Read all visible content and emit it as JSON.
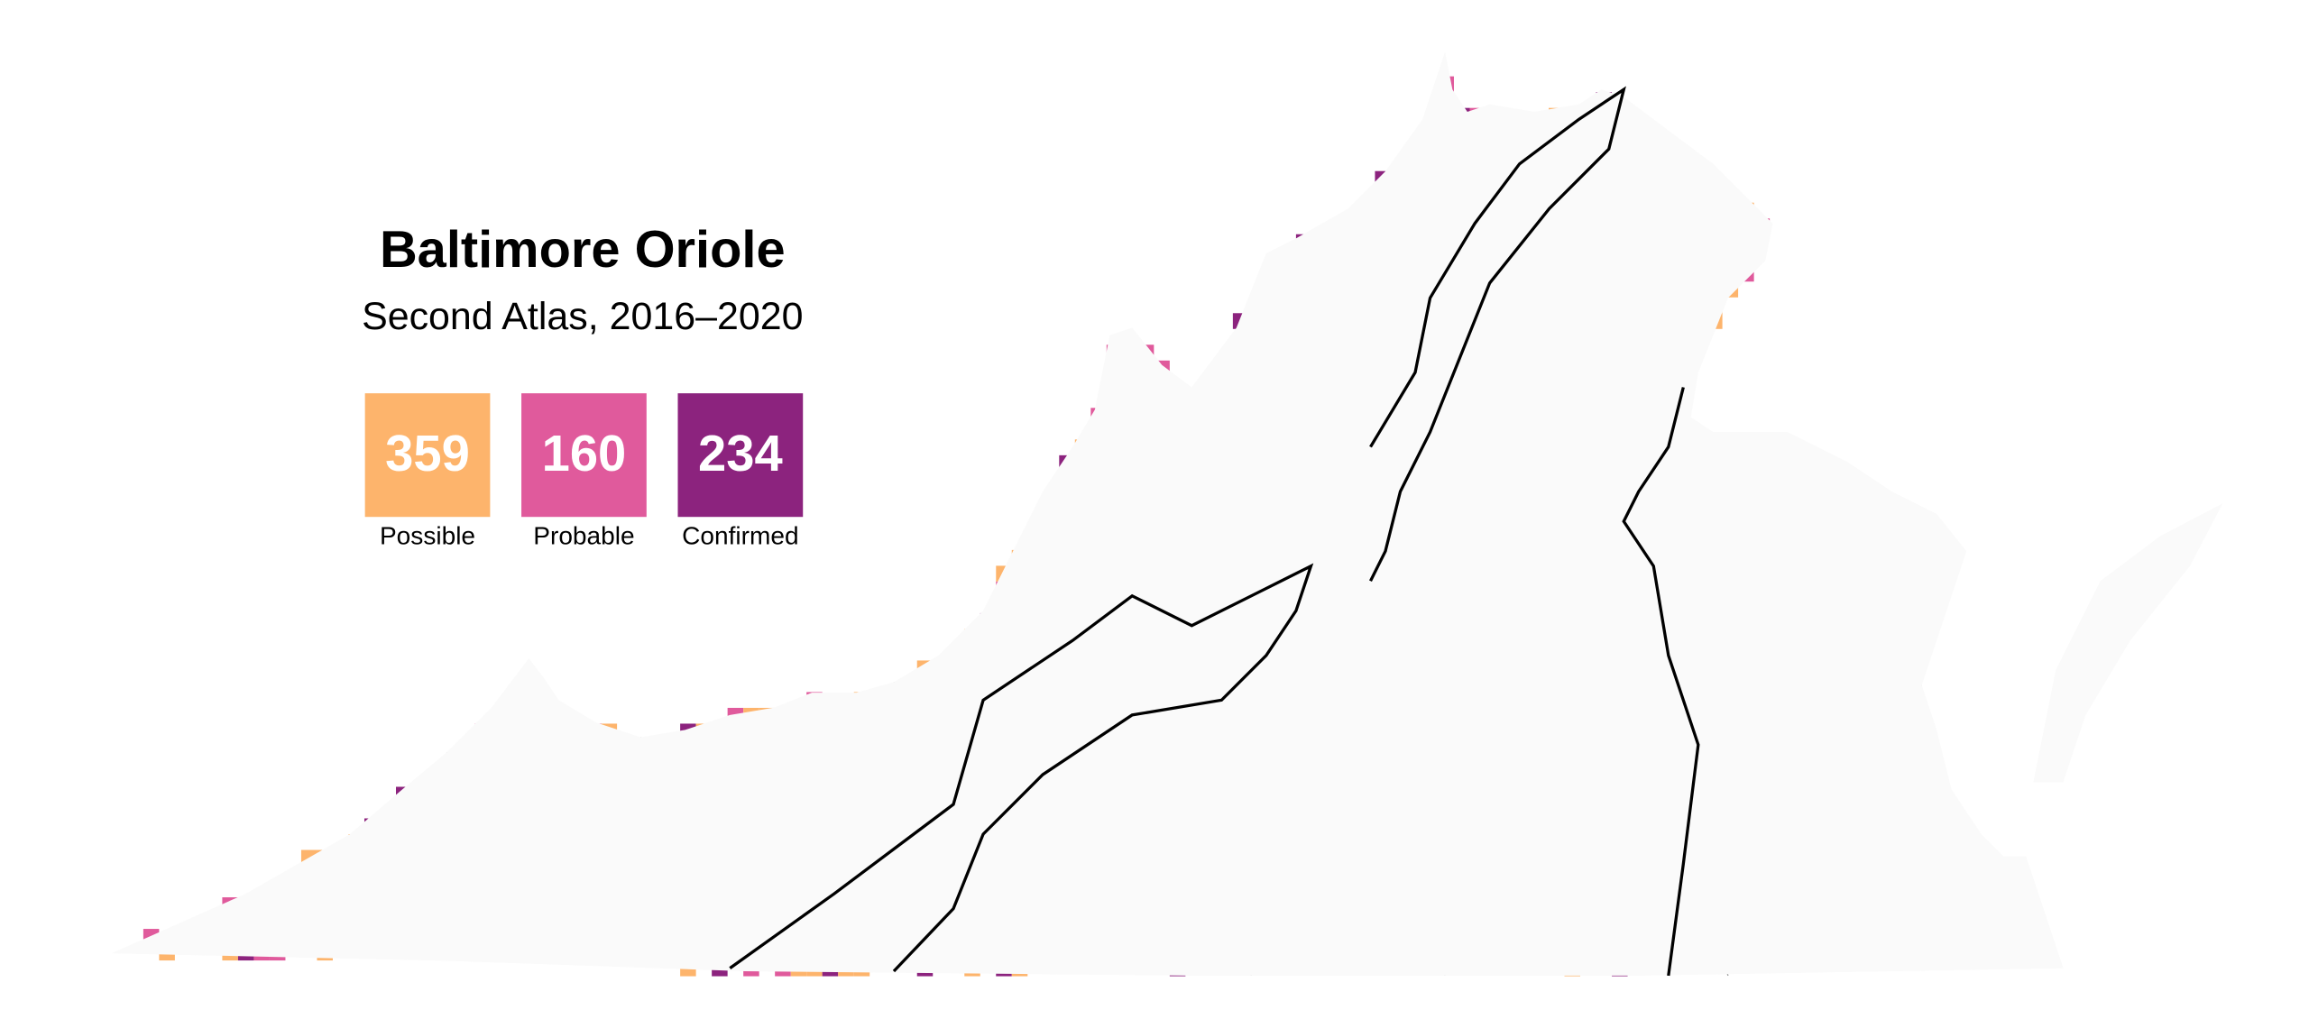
{
  "title": "Baltimore Oriole",
  "subtitle": "Second Atlas, 2016–2020",
  "legend": [
    {
      "count": 359,
      "label": "Possible",
      "color": "#fdb46c"
    },
    {
      "count": 160,
      "label": "Probable",
      "color": "#e05a9c"
    },
    {
      "count": 234,
      "label": "Confirmed",
      "color": "#8c237e"
    }
  ]
}
